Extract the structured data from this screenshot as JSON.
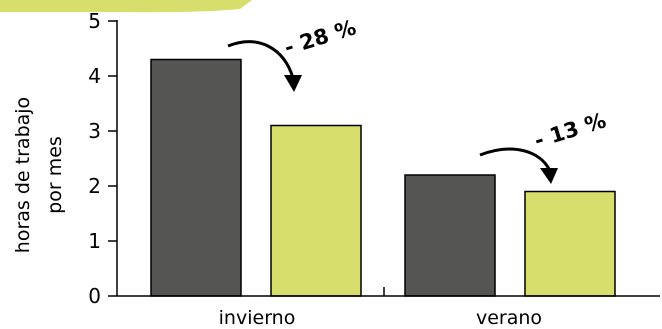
{
  "chart_data": {
    "type": "bar",
    "categories": [
      "invierno",
      "verano"
    ],
    "series": [
      {
        "values": [
          4.3,
          2.2
        ]
      },
      {
        "values": [
          3.1,
          1.9
        ]
      }
    ],
    "ylabel": [
      "horas de trabajo",
      "por mes"
    ],
    "ylim": [
      0,
      5
    ],
    "yticks": [
      "0",
      "1",
      "2",
      "3",
      "4",
      "5"
    ],
    "annotations": [
      "- 28 %",
      "- 13 %"
    ],
    "colors": {
      "series_0": "#555553",
      "series_1": "#d7de6b",
      "axis": "#000000",
      "top_band": "#d7de6b"
    },
    "grid": false,
    "legend": "none"
  }
}
